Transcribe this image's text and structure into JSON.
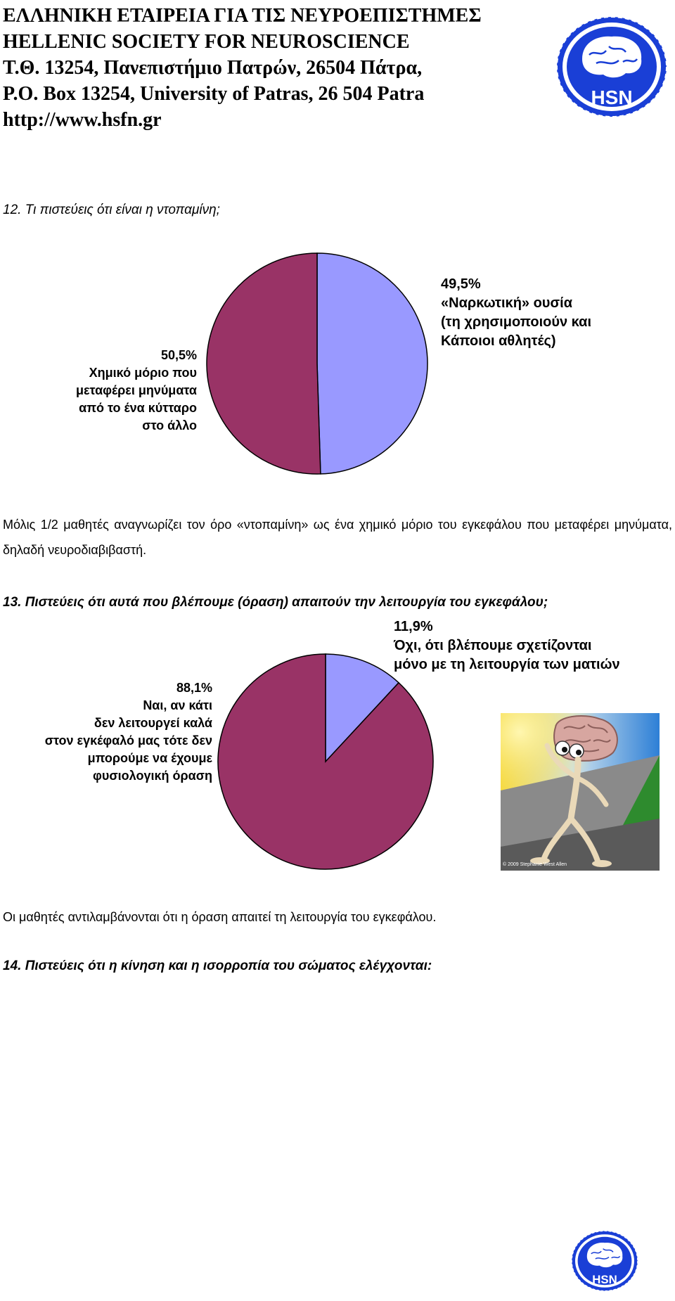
{
  "header": {
    "line1": "ΕΛΛΗΝΙΚΗ ΕΤΑΙΡΕΙΑ ΓΙΑ ΤΙΣ ΝΕΥΡΟΕΠΙΣΤΗΜΕΣ",
    "line2": "HELLENIC SOCIETY FOR NEUROSCIENCE",
    "line3": "Τ.Θ. 13254, Πανεπιστήμιο Πατρών, 26504 Πάτρα,",
    "line4": "P.O. Box 13254, University of Patras, 26 504 Patra",
    "line5": "http://www.hsfn.gr",
    "logo_text": "HSN"
  },
  "q12": {
    "question": "12. Τι πιστεύεις ότι είναι η ντοπαμίνη;",
    "label_left": {
      "pct": "50,5%",
      "l1": "Χημικό μόριο που",
      "l2": "μεταφέρει μηνύματα",
      "l3": "από το ένα κύτταρο",
      "l4": "στο άλλο"
    },
    "label_right": {
      "pct": "49,5%",
      "l1": "«Ναρκωτική» ουσία",
      "l2": "(τη χρησιμοποιούν και",
      "l3": "Κάποιοι αθλητές)"
    },
    "conclusion": "Μόλις 1/2 μαθητές αναγνωρίζει τον όρο «ντοπαμίνη» ως ένα χημικό μόριο του εγκεφάλου που μεταφέρει μηνύματα, δηλαδή νευροδιαβιβαστή."
  },
  "q13": {
    "question": "13. Πιστεύεις ότι αυτά που βλέπουμε (όραση) απαιτούν την λειτουργία του εγκεφάλου;",
    "label_left": {
      "pct": "88,1%",
      "l1": "Ναι, αν κάτι",
      "l2": "δεν λειτουργεί καλά",
      "l3": "στον εγκέφαλό μας τότε δεν",
      "l4": "μπορούμε να έχουμε",
      "l5": "φυσιολογική όραση"
    },
    "label_right": {
      "pct": "11,9%",
      "l1": "Όχι, ότι βλέπουμε σχετίζονται",
      "l2": "μόνο με τη λειτουργία των ματιών"
    },
    "image_credit": "© 2009 Stephanie West Allen",
    "conclusion": "Οι μαθητές αντιλαμβάνονται ότι η όραση απαιτεί τη λειτουργία του εγκεφάλου."
  },
  "q14": {
    "question": "14. Πιστεύεις ότι η κίνηση και η ισορροπία του σώματος ελέγχονται:"
  },
  "chart_data": [
    {
      "type": "pie",
      "categories": [
        "Χημικό μόριο που μεταφέρει μηνύματα από το ένα κύτταρο στο άλλο",
        "«Ναρκωτική» ουσία (τη χρησιμοποιούν και Κάποιοι αθλητές)"
      ],
      "values": [
        50.5,
        49.5
      ],
      "colors": [
        "#993366",
        "#9999ff"
      ]
    },
    {
      "type": "pie",
      "categories": [
        "Ναι, αν κάτι δεν λειτουργεί καλά στον εγκέφαλό μας τότε δεν μπορούμε να έχουμε φυσιολογική όραση",
        "Όχι, ότι βλέπουμε σχετίζονται μόνο με τη λειτουργία των ματιών"
      ],
      "values": [
        88.1,
        11.9
      ],
      "colors": [
        "#993366",
        "#9999ff"
      ]
    }
  ]
}
